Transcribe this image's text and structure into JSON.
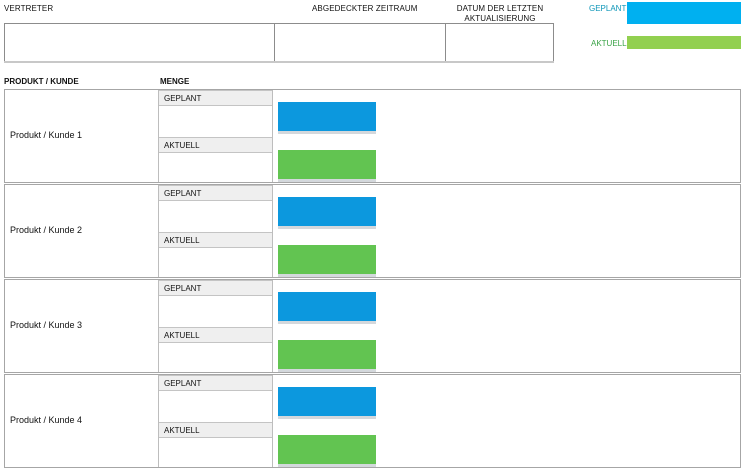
{
  "header": {
    "representative_label": "VERTRETER",
    "period_label": "ABGEDECKTER ZEITRAUM",
    "last_update_label_line1": "DATUM DER LETZTEN",
    "last_update_label_line2": "AKTUALISIERUNG"
  },
  "legend": {
    "planned_label": "GEPLANT",
    "actual_label": "AKTUELL",
    "planned_color": "#00b0f0",
    "actual_color": "#92d050"
  },
  "table": {
    "product_column": "PRODUKT / KUNDE",
    "quantity_column": "MENGE",
    "planned_label": "GEPLANT",
    "actual_label": "AKTUELL",
    "rows": [
      {
        "label": "Produkt / Kunde 1"
      },
      {
        "label": "Produkt / Kunde 2"
      },
      {
        "label": "Produkt / Kunde 3"
      },
      {
        "label": "Produkt / Kunde 4"
      }
    ]
  }
}
